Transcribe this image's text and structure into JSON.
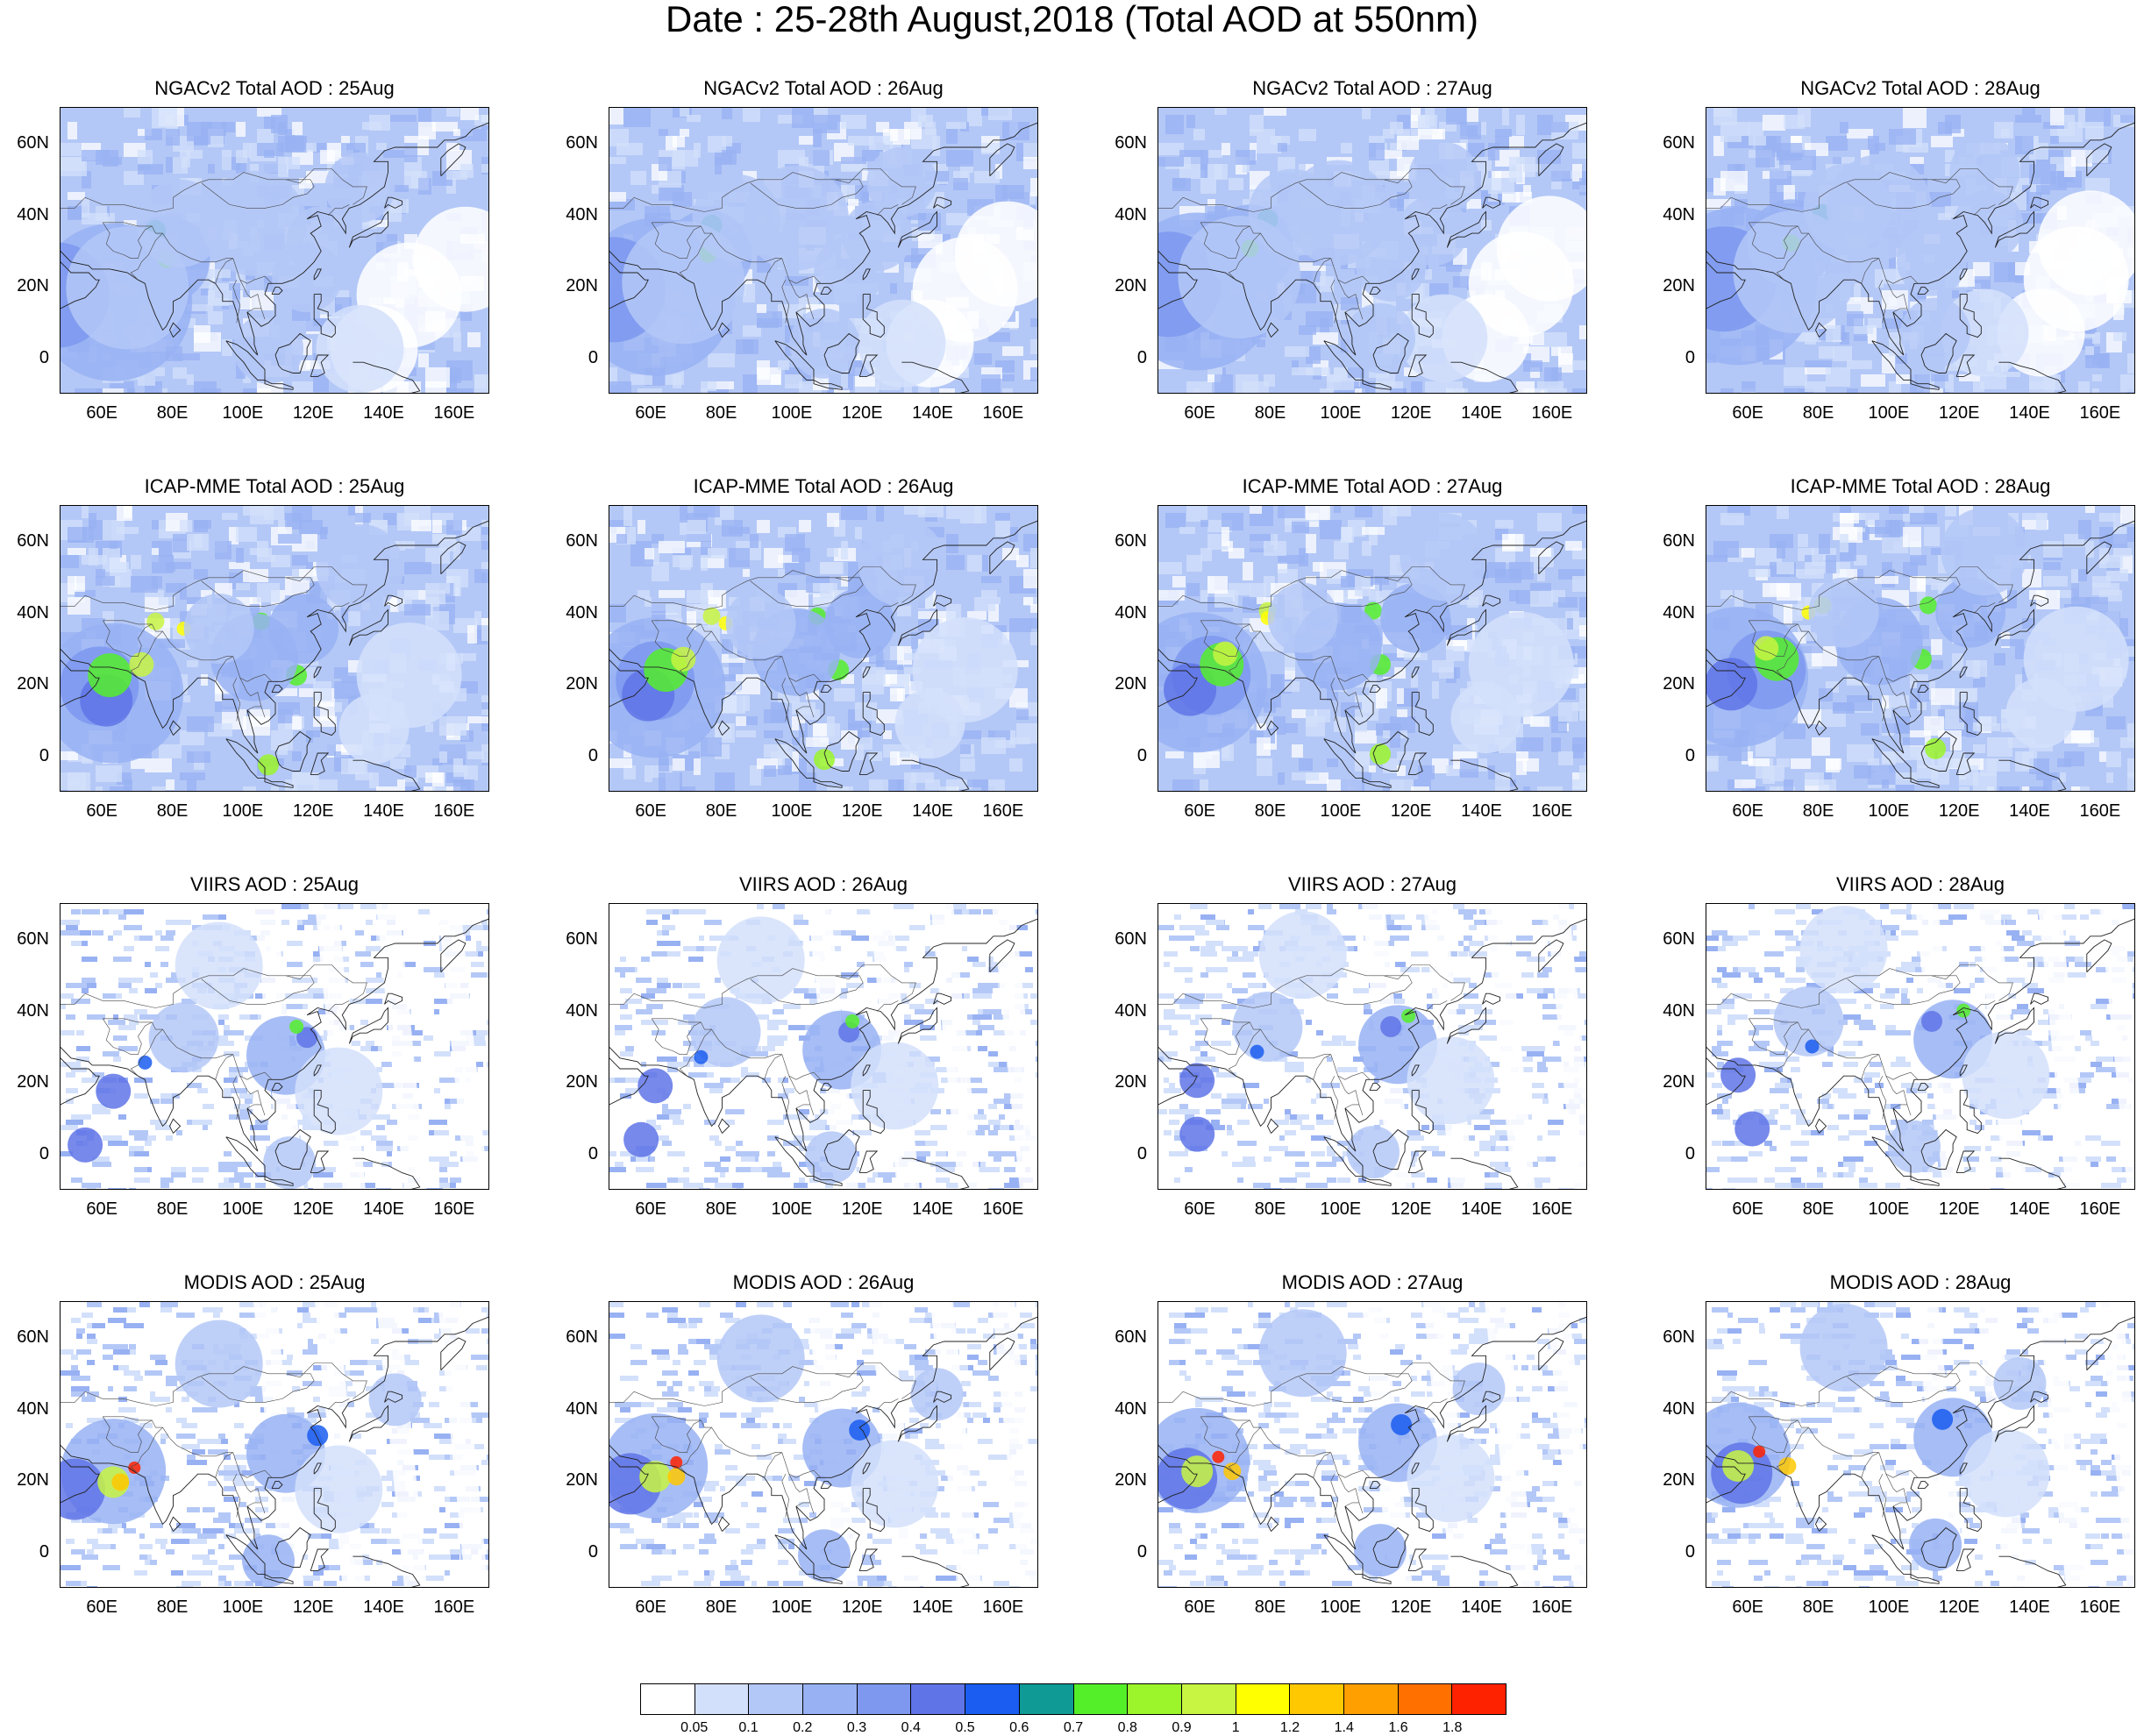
{
  "title": "Date : 25-28th August,2018 (Total AOD at 550nm)",
  "rows": [
    {
      "id": "ngac",
      "panels": [
        "NGACv2 Total AOD : 25Aug",
        "NGACv2 Total AOD : 26Aug",
        "NGACv2 Total AOD : 27Aug",
        "NGACv2 Total AOD : 28Aug"
      ]
    },
    {
      "id": "icap",
      "panels": [
        "ICAP-MME Total AOD : 25Aug",
        "ICAP-MME Total AOD : 26Aug",
        "ICAP-MME Total AOD : 27Aug",
        "ICAP-MME Total AOD : 28Aug"
      ]
    },
    {
      "id": "viirs",
      "panels": [
        "VIIRS AOD : 25Aug",
        "VIIRS AOD : 26Aug",
        "VIIRS AOD : 27Aug",
        "VIIRS AOD : 28Aug"
      ]
    },
    {
      "id": "modis",
      "panels": [
        "MODIS AOD : 25Aug",
        "MODIS AOD : 26Aug",
        "MODIS AOD : 27Aug",
        "MODIS AOD : 28Aug"
      ]
    }
  ],
  "axes": {
    "lat_labels": [
      "60N",
      "40N",
      "20N",
      "0"
    ],
    "lon_labels": [
      "60E",
      "80E",
      "100E",
      "120E",
      "140E",
      "160E"
    ]
  },
  "colorbar": {
    "labels": [
      "0.05",
      "0.1",
      "0.2",
      "0.3",
      "0.4",
      "0.5",
      "0.6",
      "0.7",
      "0.8",
      "0.9",
      "1",
      "1.2",
      "1.4",
      "1.6",
      "1.8"
    ],
    "colors": [
      "#ffffff",
      "#d3e0fb",
      "#b4c8f7",
      "#98b1f3",
      "#7d98ee",
      "#5f74e6",
      "#1a5df0",
      "#0f9a96",
      "#55ef2a",
      "#9bf52a",
      "#c8f542",
      "#ffff00",
      "#ffc800",
      "#ff9f00",
      "#ff7000",
      "#ff2200"
    ]
  }
}
